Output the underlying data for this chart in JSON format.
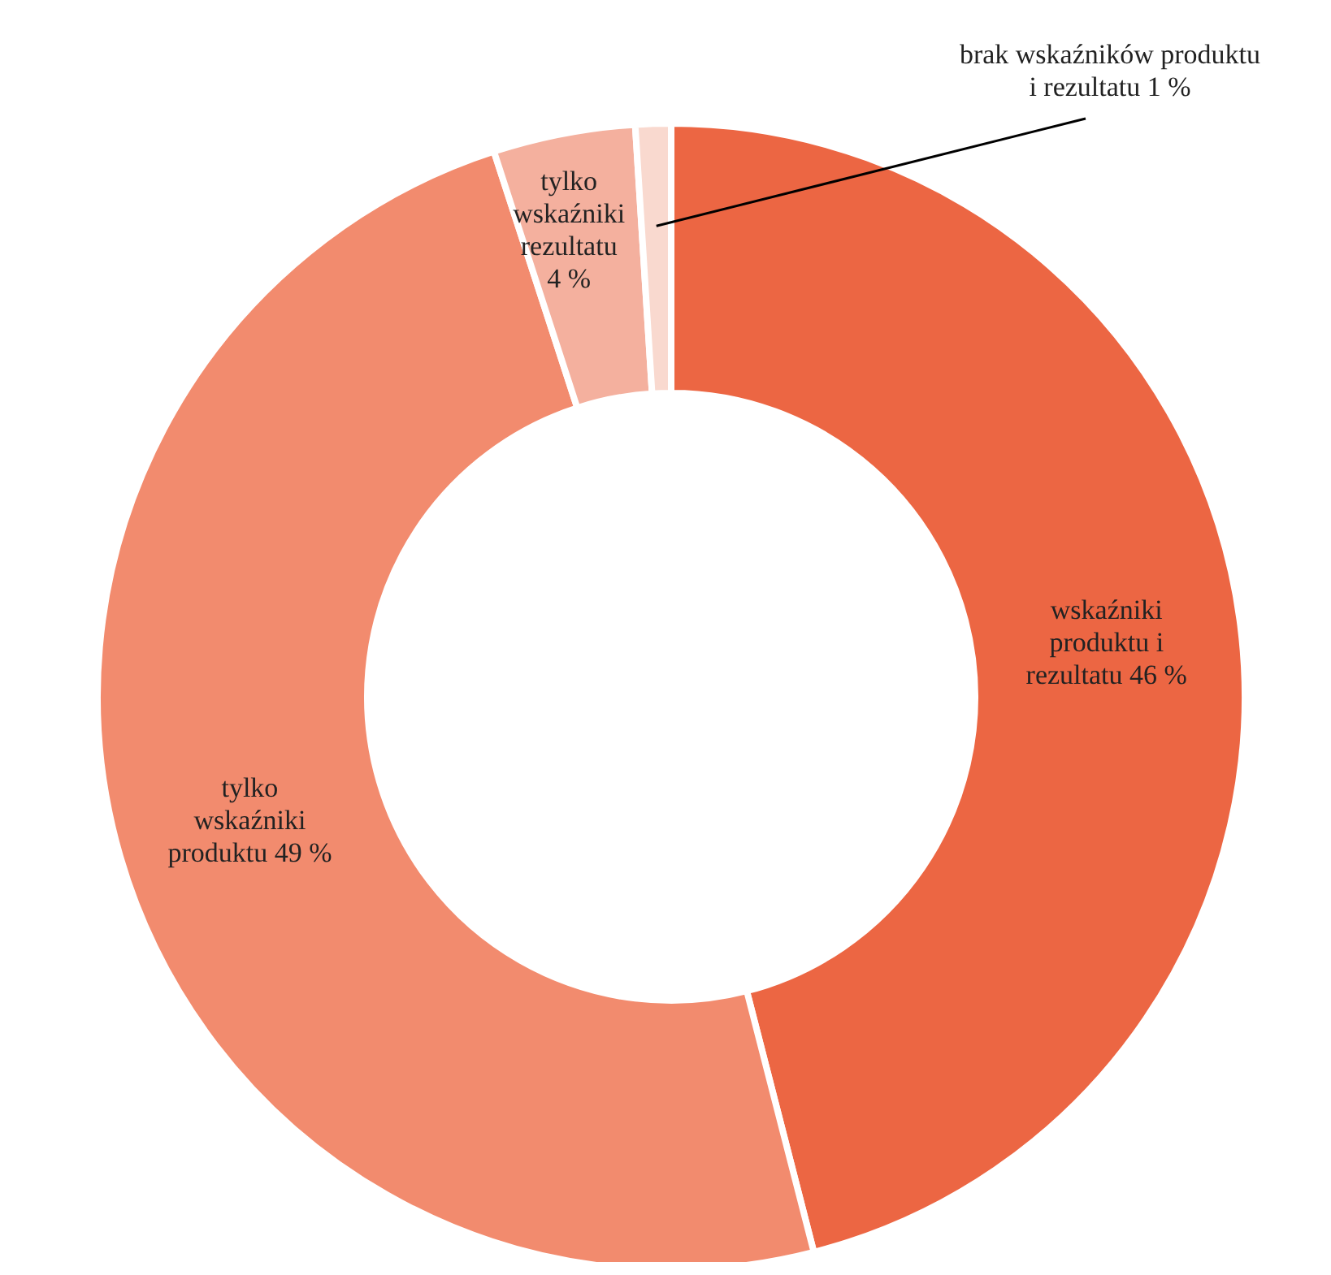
{
  "chart_data": {
    "type": "donut",
    "categories": [
      "wskaźniki produktu i rezultatu",
      "tylko wskaźniki produktu",
      "tylko wskaźniki rezultatu",
      "brak wskaźników produktu i rezultatu"
    ],
    "values": [
      46,
      49,
      4,
      1
    ],
    "colors": [
      "#ec6643",
      "#f28b6e",
      "#f4b09e",
      "#f9d9cf"
    ],
    "value_labels": [
      "46 %",
      "49 %",
      "4 %",
      "1 %"
    ]
  }
}
